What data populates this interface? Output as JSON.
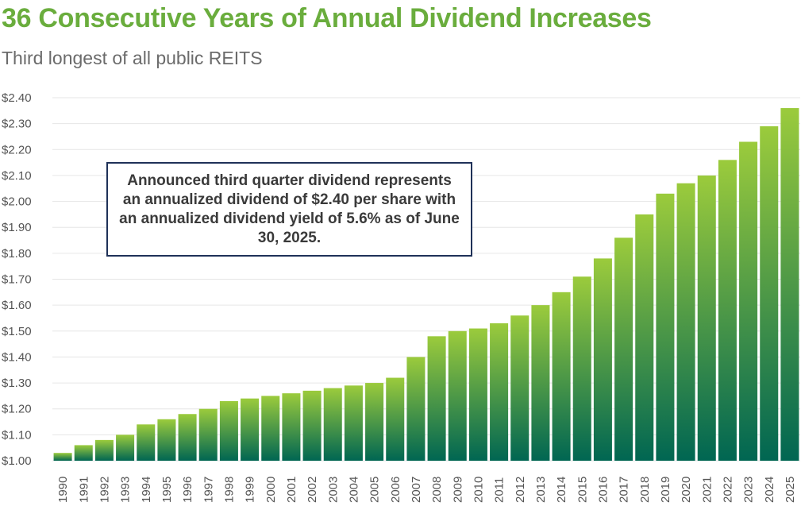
{
  "header": {
    "title": "36 Consecutive Years of Annual Dividend Increases",
    "subtitle": "Third longest of all public REITS"
  },
  "callout": {
    "text": "Announced third quarter dividend represents an annualized dividend of $2.40 per share with an annualized dividend yield of 5.6% as of June 30, 2025."
  },
  "colors": {
    "title": "#6aad3d",
    "bar_top": "#9bcb3c",
    "bar_bottom": "#006652",
    "callout_border": "#1f3158",
    "gridline": "#e6e6e6"
  },
  "chart_data": {
    "type": "bar",
    "title": "36 Consecutive Years of Annual Dividend Increases",
    "subtitle": "Third longest of all public REITS",
    "xlabel": "",
    "ylabel": "",
    "categories": [
      "1990",
      "1991",
      "1992",
      "1993",
      "1994",
      "1995",
      "1996",
      "1997",
      "1998",
      "1999",
      "2000",
      "2001",
      "2002",
      "2003",
      "2004",
      "2005",
      "2006",
      "2007",
      "2008",
      "2009",
      "2010",
      "2011",
      "2012",
      "2013",
      "2014",
      "2015",
      "2016",
      "2017",
      "2018",
      "2019",
      "2020",
      "2021",
      "2022",
      "2023",
      "2024",
      "2025"
    ],
    "values": [
      1.03,
      1.06,
      1.08,
      1.1,
      1.14,
      1.16,
      1.18,
      1.2,
      1.23,
      1.24,
      1.25,
      1.26,
      1.27,
      1.28,
      1.29,
      1.3,
      1.32,
      1.4,
      1.48,
      1.5,
      1.51,
      1.53,
      1.56,
      1.6,
      1.65,
      1.71,
      1.78,
      1.86,
      1.95,
      2.03,
      2.07,
      2.1,
      2.16,
      2.23,
      2.29,
      2.36
    ],
    "ylim": [
      1.0,
      2.4
    ],
    "y_ticks": [
      1.0,
      1.1,
      1.2,
      1.3,
      1.4,
      1.5,
      1.6,
      1.7,
      1.8,
      1.9,
      2.0,
      2.1,
      2.2,
      2.3,
      2.4
    ],
    "y_tick_labels": [
      "$1.00",
      "$1.10",
      "$1.20",
      "$1.30",
      "$1.40",
      "$1.50",
      "$1.60",
      "$1.70",
      "$1.80",
      "$1.90",
      "$2.00",
      "$2.10",
      "$2.20",
      "$2.30",
      "$2.40"
    ],
    "grid": true,
    "legend": "none",
    "x_tick_rotation": "vertical"
  }
}
